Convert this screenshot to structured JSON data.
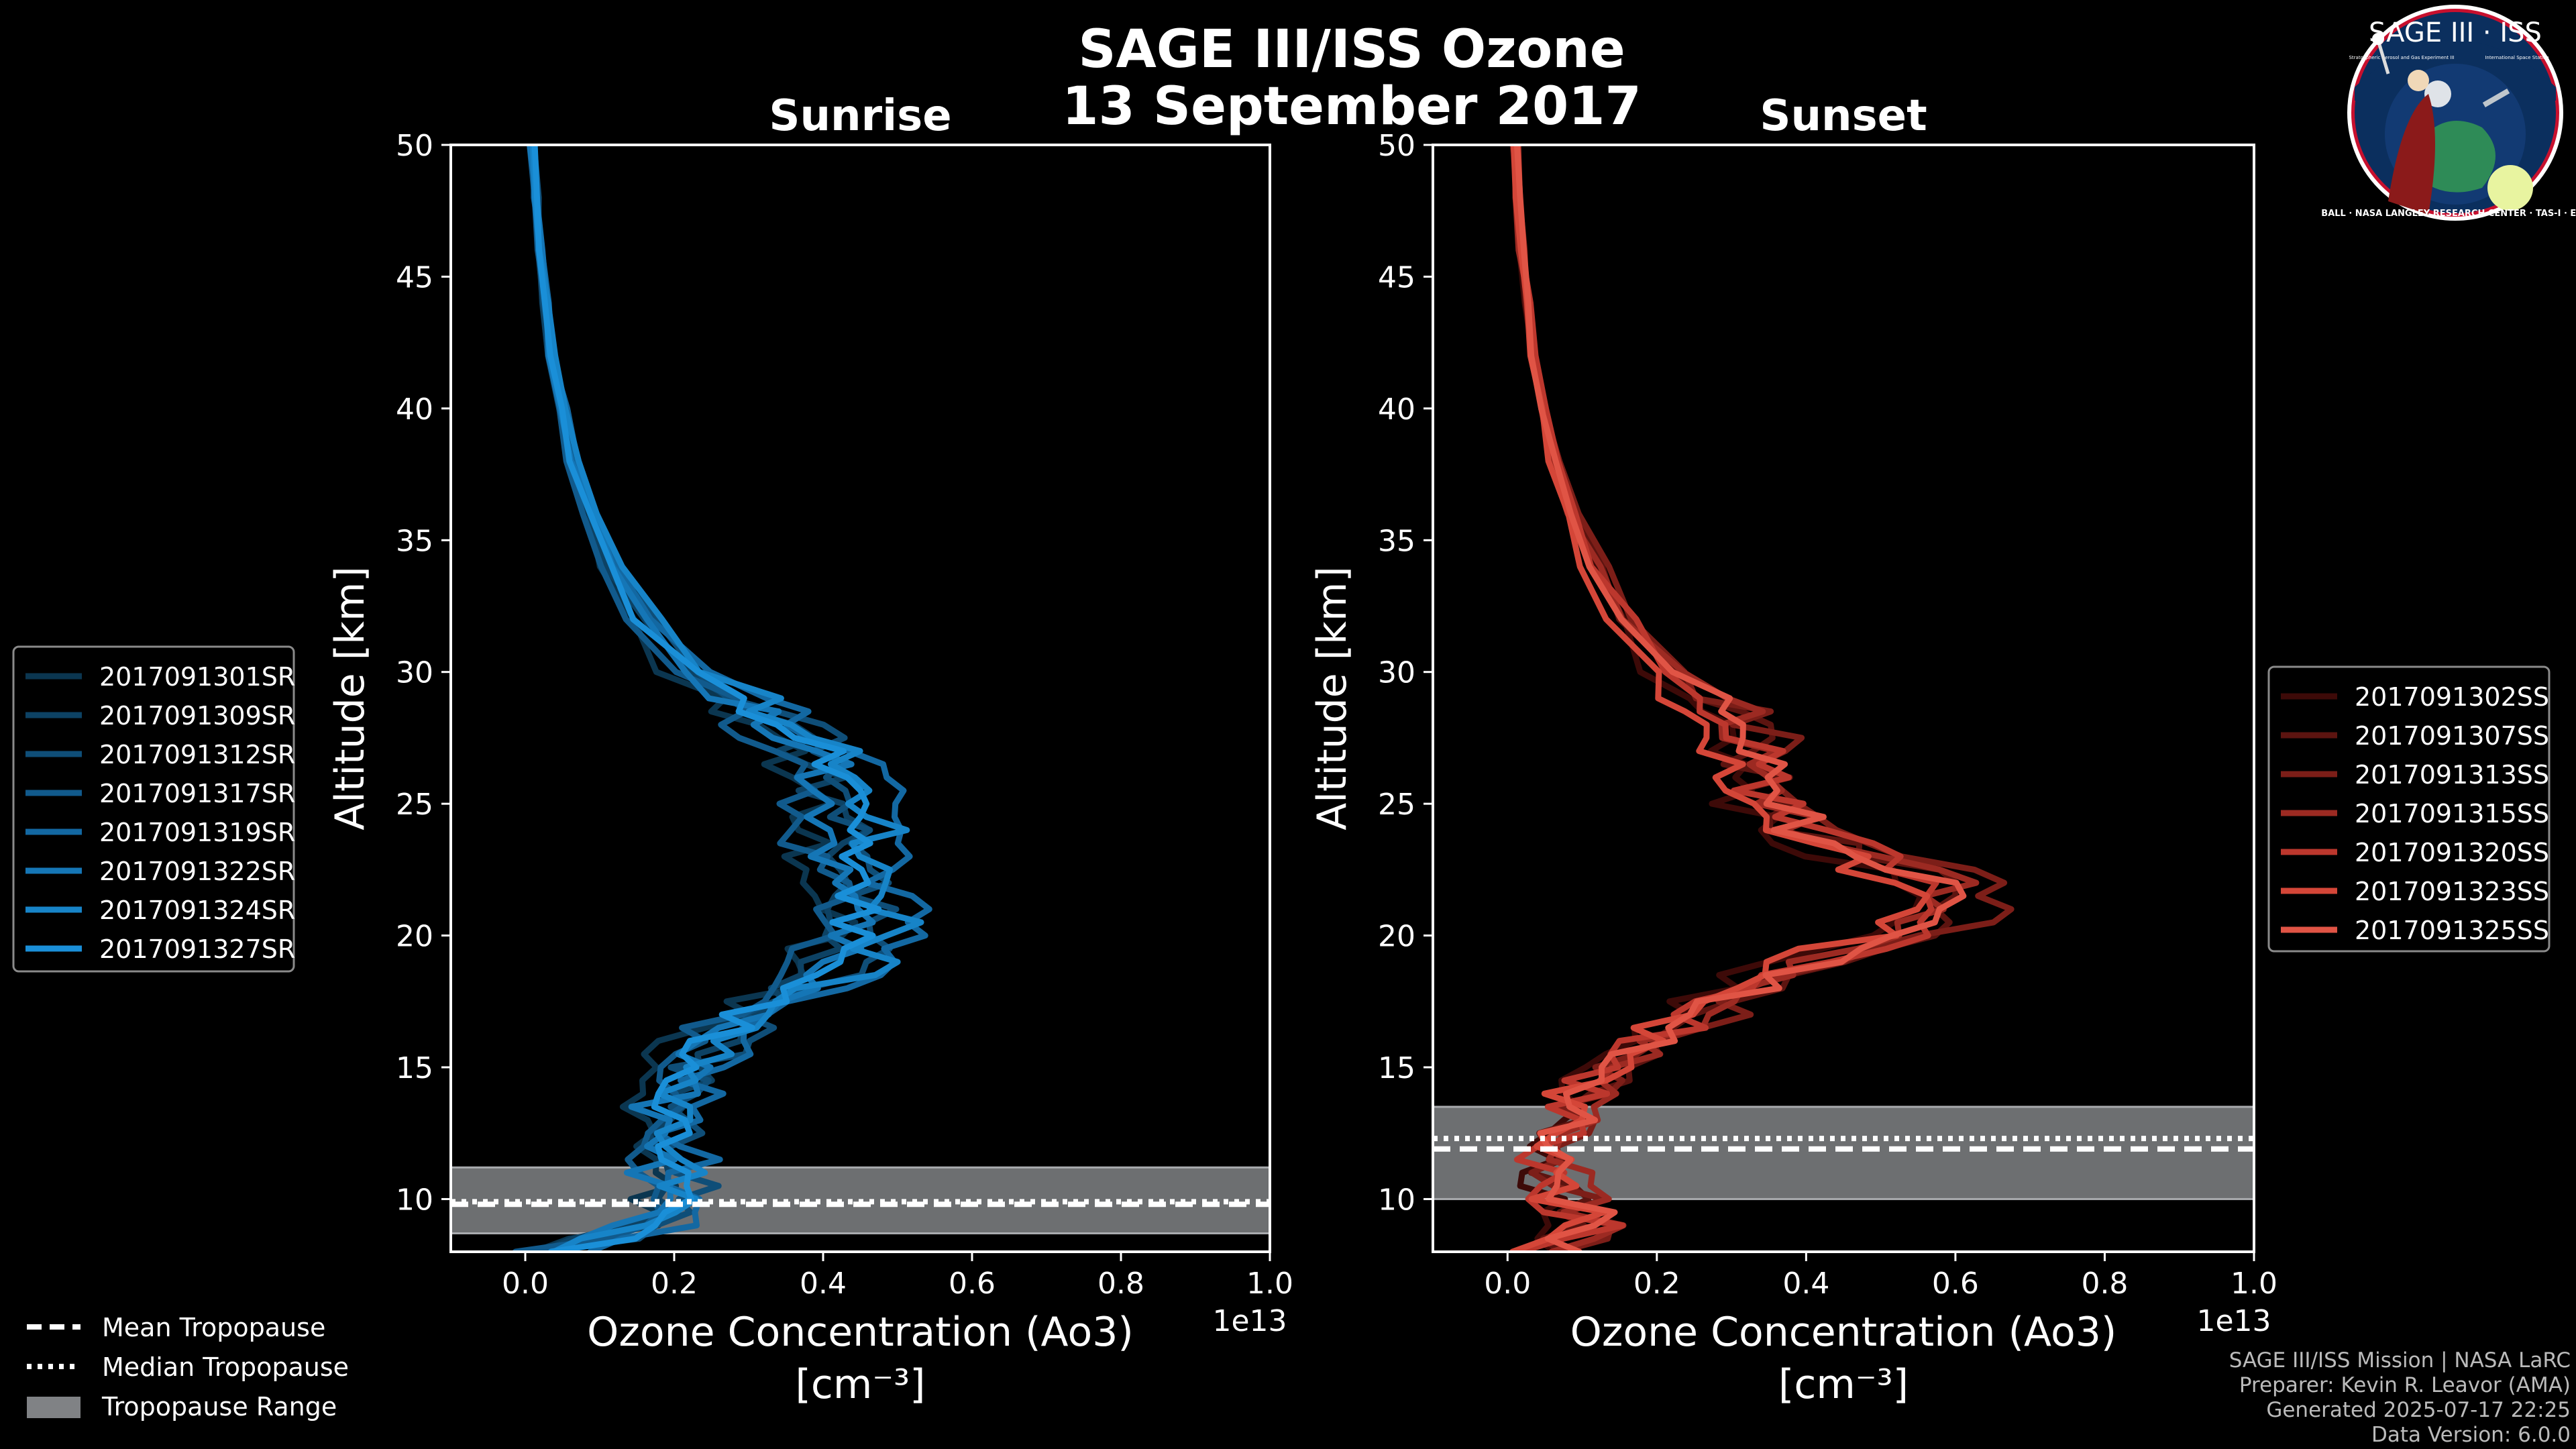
{
  "figure": {
    "title_line1": "SAGE III/ISS Ozone",
    "title_line2": "13 September 2017"
  },
  "logo": {
    "top_text": "SAGE III · ISS",
    "small_left": "Stratospheric Aerosol and Gas Experiment III",
    "small_right": "International Space Station",
    "ring_text": "BALL · NASA LANGLEY RESEARCH CENTER · TAS-I · ESA"
  },
  "footer": {
    "line1": "SAGE III/ISS Mission | NASA LaRC",
    "line2": "Preparer: Kevin R. Leavor (AMA)",
    "line3": "Generated 2025-07-17 22:25",
    "line4": "Data Version: 6.0.0"
  },
  "bottom_legend": {
    "mean": "Mean Tropopause",
    "median": "Median Tropopause",
    "range": "Tropopause Range"
  },
  "colors": {
    "sunrise": [
      "#0b3650",
      "#0d4264",
      "#0f4e78",
      "#115a8c",
      "#1368a2",
      "#1576b6",
      "#1784c8",
      "#1a8fd8"
    ],
    "sunset": [
      "#3d0a08",
      "#5c1410",
      "#7c1e18",
      "#9c2a22",
      "#bc372d",
      "#d44638",
      "#e05445"
    ],
    "tropo_band": "#808285",
    "background": "#000000"
  },
  "chart_data": [
    {
      "type": "line",
      "title": "Sunrise",
      "xlabel": "Ozone Concentration (Ao3)",
      "xunit": "[cm⁻³]",
      "ylabel": "Altitude [km]",
      "xlim": [
        -0.1,
        1.0
      ],
      "ylim": [
        8,
        50
      ],
      "x_ticks": [
        0.0,
        0.2,
        0.4,
        0.6,
        0.8,
        1.0
      ],
      "x_tick_labels": [
        "0.0",
        "0.2",
        "0.4",
        "0.6",
        "0.8",
        "1.0"
      ],
      "y_ticks": [
        10,
        15,
        20,
        25,
        30,
        35,
        40,
        45,
        50
      ],
      "y_tick_labels": [
        "10",
        "15",
        "20",
        "25",
        "30",
        "35",
        "40",
        "45",
        "50"
      ],
      "x_offset_label": "1e13",
      "tropopause": {
        "mean": 9.8,
        "median": 9.9,
        "range": [
          8.7,
          11.2
        ]
      },
      "base_profile": {
        "altitude": [
          8,
          9,
          10,
          11,
          12,
          13,
          14,
          15,
          16,
          17,
          18,
          19,
          20,
          21,
          22,
          23,
          24,
          25,
          26,
          27,
          28,
          29,
          30,
          32,
          34,
          36,
          38,
          40,
          42,
          44,
          46,
          48,
          50
        ],
        "ozone": [
          0.03,
          0.17,
          0.21,
          0.19,
          0.18,
          0.18,
          0.2,
          0.22,
          0.26,
          0.3,
          0.37,
          0.42,
          0.45,
          0.45,
          0.44,
          0.43,
          0.43,
          0.42,
          0.42,
          0.39,
          0.34,
          0.28,
          0.22,
          0.16,
          0.12,
          0.09,
          0.065,
          0.05,
          0.035,
          0.027,
          0.02,
          0.014,
          0.01
        ]
      },
      "series": [
        {
          "name": "2017091301SR",
          "scale": 0.93,
          "shift": -0.02,
          "seed": 1
        },
        {
          "name": "2017091309SR",
          "scale": 0.98,
          "shift": 0.0,
          "seed": 2
        },
        {
          "name": "2017091312SR",
          "scale": 1.04,
          "shift": 0.01,
          "seed": 3
        },
        {
          "name": "2017091317SR",
          "scale": 0.9,
          "shift": 0.0,
          "seed": 4
        },
        {
          "name": "2017091319SR",
          "scale": 1.07,
          "shift": 0.02,
          "seed": 5
        },
        {
          "name": "2017091322SR",
          "scale": 1.0,
          "shift": -0.01,
          "seed": 6
        },
        {
          "name": "2017091324SR",
          "scale": 1.09,
          "shift": 0.0,
          "seed": 7
        },
        {
          "name": "2017091327SR",
          "scale": 0.96,
          "shift": 0.015,
          "seed": 8
        }
      ]
    },
    {
      "type": "line",
      "title": "Sunset",
      "xlabel": "Ozone Concentration (Ao3)",
      "xunit": "[cm⁻³]",
      "ylabel": "Altitude [km]",
      "xlim": [
        -0.1,
        1.0
      ],
      "ylim": [
        8,
        50
      ],
      "x_ticks": [
        0.0,
        0.2,
        0.4,
        0.6,
        0.8,
        1.0
      ],
      "x_tick_labels": [
        "0.0",
        "0.2",
        "0.4",
        "0.6",
        "0.8",
        "1.0"
      ],
      "y_ticks": [
        10,
        15,
        20,
        25,
        30,
        35,
        40,
        45,
        50
      ],
      "y_tick_labels": [
        "10",
        "15",
        "20",
        "25",
        "30",
        "35",
        "40",
        "45",
        "50"
      ],
      "x_offset_label": "1e13",
      "tropopause": {
        "mean": 11.9,
        "median": 12.3,
        "range": [
          10.0,
          13.5
        ]
      },
      "base_profile": {
        "altitude": [
          8,
          9,
          10,
          11,
          12,
          13,
          14,
          15,
          16,
          17,
          18,
          19,
          20,
          21,
          22,
          23,
          24,
          25,
          26,
          27,
          28,
          29,
          30,
          32,
          34,
          36,
          38,
          40,
          42,
          44,
          46,
          48,
          50
        ],
        "ozone": [
          0.05,
          0.12,
          0.08,
          0.06,
          0.07,
          0.07,
          0.1,
          0.14,
          0.2,
          0.26,
          0.33,
          0.42,
          0.55,
          0.6,
          0.6,
          0.5,
          0.4,
          0.36,
          0.34,
          0.33,
          0.32,
          0.27,
          0.22,
          0.16,
          0.12,
          0.09,
          0.065,
          0.05,
          0.035,
          0.027,
          0.02,
          0.014,
          0.01
        ]
      },
      "series": [
        {
          "name": "2017091302SS",
          "scale": 0.92,
          "shift": -0.02,
          "seed": 11
        },
        {
          "name": "2017091307SS",
          "scale": 0.99,
          "shift": 0.0,
          "seed": 12
        },
        {
          "name": "2017091313SS",
          "scale": 1.05,
          "shift": 0.01,
          "seed": 13
        },
        {
          "name": "2017091315SS",
          "scale": 0.94,
          "shift": 0.02,
          "seed": 14
        },
        {
          "name": "2017091320SS",
          "scale": 1.02,
          "shift": -0.01,
          "seed": 15
        },
        {
          "name": "2017091323SS",
          "scale": 0.88,
          "shift": 0.0,
          "seed": 16
        },
        {
          "name": "2017091325SS",
          "scale": 0.97,
          "shift": 0.01,
          "seed": 17
        }
      ]
    }
  ]
}
